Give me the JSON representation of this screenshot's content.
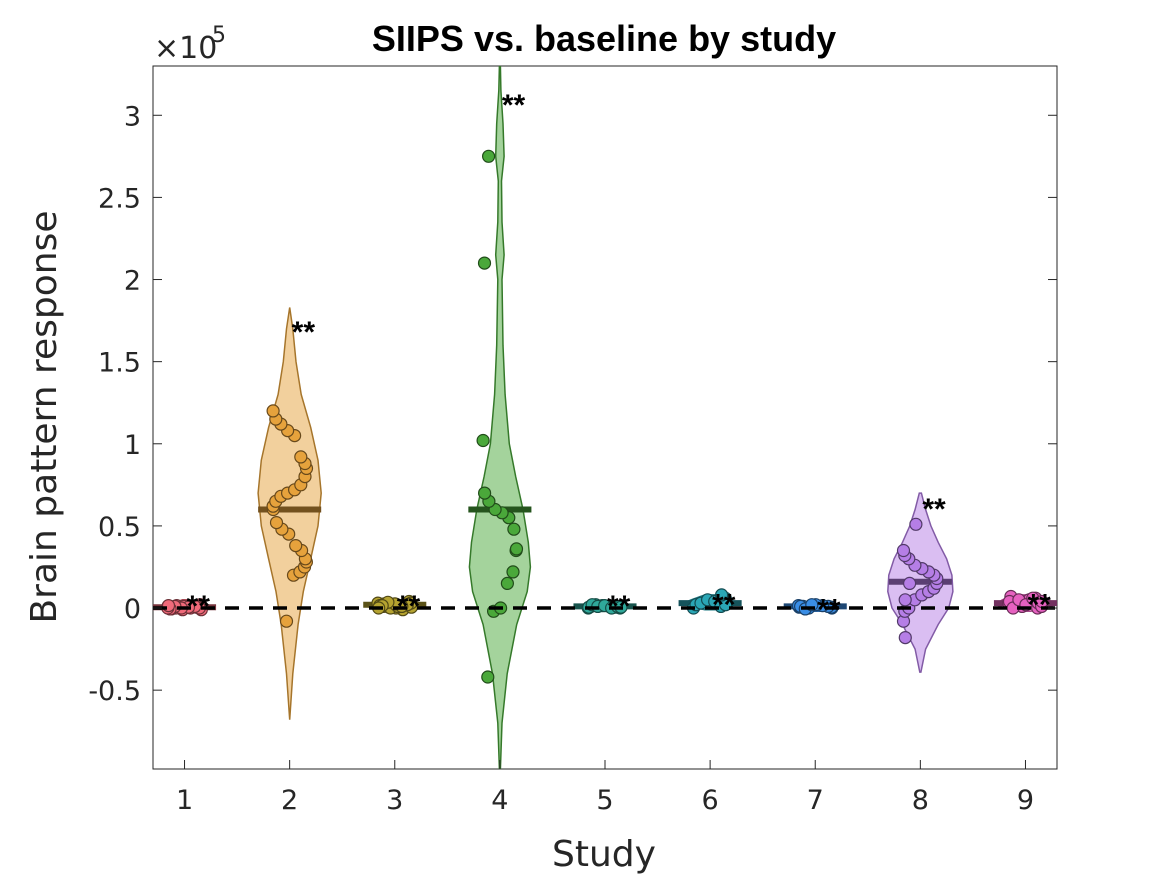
{
  "chart_data": {
    "type": "violin",
    "title": "SIIPS vs. baseline by study",
    "xlabel": "Study",
    "ylabel": "Brain pattern response",
    "y_exponent_base": "×10",
    "y_exponent_power": "5",
    "ylim": [
      -0.98,
      3.3
    ],
    "yticks": [
      {
        "value": -0.5,
        "label": "-0.5"
      },
      {
        "value": 0,
        "label": "0"
      },
      {
        "value": 0.5,
        "label": "0.5"
      },
      {
        "value": 1,
        "label": "1"
      },
      {
        "value": 1.5,
        "label": "1.5"
      },
      {
        "value": 2,
        "label": "2"
      },
      {
        "value": 2.5,
        "label": "2.5"
      },
      {
        "value": 3,
        "label": "3"
      }
    ],
    "xlim": [
      0.7,
      9.3
    ],
    "reference_line": {
      "y": 0,
      "style": "dashed"
    },
    "series": [
      {
        "label": "1",
        "color": "#f06a7a",
        "mean": 0.005,
        "sig_label": "**",
        "sig_y": 0.03,
        "violin": [
          [
            -0.03,
            0.03
          ],
          [
            -0.01,
            0.12
          ],
          [
            0.0,
            0.16
          ],
          [
            0.01,
            0.15
          ],
          [
            0.03,
            0.1
          ],
          [
            0.05,
            0.02
          ]
        ],
        "points": [
          -0.01,
          0.0,
          0.005,
          0.01,
          0.0,
          -0.005,
          0.015,
          0.01,
          0.0,
          0.005,
          0.02,
          -0.01,
          0.0,
          0.01,
          0.005,
          0.0,
          0.01,
          -0.005,
          0.0,
          0.015
        ]
      },
      {
        "label": "2",
        "color": "#e6a23c",
        "mean": 0.6,
        "sig_label": "**",
        "sig_y": 1.7,
        "violin": [
          [
            -0.68,
            0.0
          ],
          [
            -0.4,
            0.03
          ],
          [
            -0.1,
            0.08
          ],
          [
            0.1,
            0.13
          ],
          [
            0.3,
            0.2
          ],
          [
            0.5,
            0.27
          ],
          [
            0.7,
            0.3
          ],
          [
            0.9,
            0.27
          ],
          [
            1.1,
            0.2
          ],
          [
            1.3,
            0.11
          ],
          [
            1.5,
            0.06
          ],
          [
            1.7,
            0.03
          ],
          [
            1.83,
            0.0
          ]
        ],
        "points": [
          -0.08,
          0.2,
          0.22,
          0.25,
          0.28,
          0.3,
          0.35,
          0.38,
          0.45,
          0.48,
          0.52,
          0.6,
          0.62,
          0.65,
          0.68,
          0.7,
          0.72,
          0.75,
          0.8,
          0.85,
          0.88,
          0.92,
          1.05,
          1.08,
          1.12,
          1.15,
          1.2
        ]
      },
      {
        "label": "3",
        "color": "#b5a330",
        "mean": 0.02,
        "sig_label": "**",
        "sig_y": 0.03,
        "violin": [
          [
            -0.02,
            0.05
          ],
          [
            -0.005,
            0.2
          ],
          [
            0.01,
            0.26
          ],
          [
            0.025,
            0.2
          ],
          [
            0.04,
            0.08
          ],
          [
            0.055,
            0.02
          ]
        ],
        "points": [
          -0.01,
          0.0,
          0.005,
          0.01,
          0.02,
          0.03,
          0.015,
          0.025,
          0.0,
          0.01,
          0.02,
          0.04,
          0.005,
          0.03,
          0.02,
          0.01,
          0.025,
          0.035,
          0.015,
          0.0
        ]
      },
      {
        "label": "4",
        "color": "#4aa83a",
        "mean": 0.6,
        "sig_label": "**",
        "sig_y": 3.08,
        "violin": [
          [
            -0.98,
            0.005
          ],
          [
            -0.7,
            0.02
          ],
          [
            -0.4,
            0.07
          ],
          [
            -0.1,
            0.16
          ],
          [
            0.1,
            0.26
          ],
          [
            0.25,
            0.29
          ],
          [
            0.4,
            0.27
          ],
          [
            0.6,
            0.22
          ],
          [
            0.8,
            0.15
          ],
          [
            1.0,
            0.09
          ],
          [
            1.3,
            0.05
          ],
          [
            1.6,
            0.03
          ],
          [
            2.0,
            0.02
          ],
          [
            2.15,
            0.04
          ],
          [
            2.35,
            0.02
          ],
          [
            2.6,
            0.015
          ],
          [
            2.75,
            0.04
          ],
          [
            2.95,
            0.03
          ],
          [
            3.15,
            0.01
          ],
          [
            3.3,
            0.005
          ]
        ],
        "points": [
          -0.42,
          -0.02,
          0.0,
          0.15,
          0.22,
          0.35,
          0.36,
          0.48,
          0.55,
          0.58,
          0.6,
          0.65,
          0.7,
          1.02,
          2.1,
          2.75
        ]
      },
      {
        "label": "5",
        "color": "#2fa89a",
        "mean": 0.01,
        "sig_label": "**",
        "sig_y": 0.03,
        "violin": [
          [
            -0.02,
            0.05
          ],
          [
            -0.005,
            0.2
          ],
          [
            0.01,
            0.24
          ],
          [
            0.025,
            0.18
          ],
          [
            0.04,
            0.06
          ]
        ],
        "points": [
          0.0,
          0.005,
          0.01,
          0.015,
          0.02,
          0.01,
          0.0,
          0.005,
          0.02,
          0.01,
          0.015,
          0.0,
          0.01,
          0.005
        ]
      },
      {
        "label": "6",
        "color": "#2aa6b5",
        "mean": 0.03,
        "sig_label": "**",
        "sig_y": 0.04,
        "violin": [
          [
            -0.01,
            0.05
          ],
          [
            0.01,
            0.2
          ],
          [
            0.03,
            0.25
          ],
          [
            0.05,
            0.18
          ],
          [
            0.08,
            0.05
          ]
        ],
        "points": [
          0.0,
          0.02,
          0.03,
          0.05,
          0.04,
          0.01,
          0.06,
          0.03,
          0.02,
          0.08
        ]
      },
      {
        "label": "7",
        "color": "#3a8ee6",
        "mean": 0.01,
        "sig_label": "**",
        "sig_y": 0.01,
        "violin": [
          [
            -0.02,
            0.05
          ],
          [
            -0.005,
            0.2
          ],
          [
            0.01,
            0.24
          ],
          [
            0.025,
            0.18
          ],
          [
            0.04,
            0.05
          ]
        ],
        "points": [
          0.0,
          0.005,
          0.01,
          0.015,
          0.02,
          0.0,
          0.01,
          0.005,
          0.015,
          0.01,
          -0.005,
          0.02
        ]
      },
      {
        "label": "8",
        "color": "#b57ee6",
        "mean": 0.16,
        "sig_label": "**",
        "sig_y": 0.62,
        "violin": [
          [
            -0.39,
            0.005
          ],
          [
            -0.25,
            0.05
          ],
          [
            -0.1,
            0.17
          ],
          [
            0.0,
            0.27
          ],
          [
            0.1,
            0.31
          ],
          [
            0.2,
            0.3
          ],
          [
            0.3,
            0.25
          ],
          [
            0.4,
            0.17
          ],
          [
            0.5,
            0.1
          ],
          [
            0.6,
            0.05
          ],
          [
            0.7,
            0.01
          ]
        ],
        "points": [
          -0.18,
          -0.08,
          -0.02,
          0.0,
          0.05,
          0.08,
          0.1,
          0.12,
          0.15,
          0.18,
          0.2,
          0.22,
          0.24,
          0.26,
          0.3,
          0.32,
          0.35,
          0.05,
          0.15,
          0.51
        ]
      },
      {
        "label": "9",
        "color": "#e661c0",
        "mean": 0.03,
        "sig_label": "**",
        "sig_y": 0.04,
        "violin": [
          [
            -0.02,
            0.05
          ],
          [
            0.0,
            0.2
          ],
          [
            0.02,
            0.28
          ],
          [
            0.05,
            0.22
          ],
          [
            0.08,
            0.08
          ]
        ],
        "points": [
          0.0,
          0.02,
          0.03,
          0.04,
          0.06,
          0.05,
          0.01,
          0.02,
          0.07,
          0.03,
          0.04,
          0.0,
          0.05,
          0.02,
          0.06,
          0.03,
          0.01,
          0.04
        ]
      }
    ]
  }
}
